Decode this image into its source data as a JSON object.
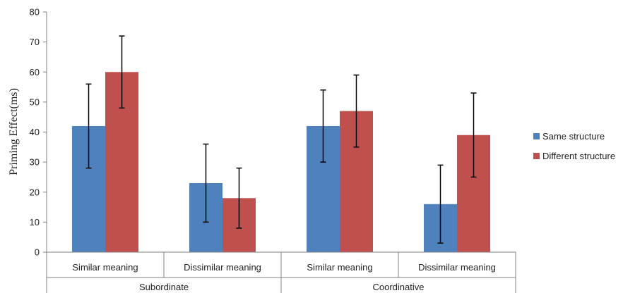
{
  "chart_data": {
    "type": "bar",
    "ylabel": "Priming Effect(ms)",
    "ylim": [
      0,
      80
    ],
    "yticks": [
      0,
      10,
      20,
      30,
      40,
      50,
      60,
      70,
      80
    ],
    "grid": false,
    "legend_position": "right",
    "groups": [
      {
        "label": "Subordinate",
        "categories": [
          "Similar meaning",
          "Dissimilar meaning"
        ]
      },
      {
        "label": "Coordinative",
        "categories": [
          "Similar meaning",
          "Dissimilar meaning"
        ]
      }
    ],
    "series": [
      {
        "name": "Same structure",
        "color": "#4f81bd",
        "values": [
          42,
          23,
          42,
          16
        ],
        "error": [
          14,
          13,
          12,
          13
        ]
      },
      {
        "name": "Different structure",
        "color": "#c0504d",
        "values": [
          60,
          18,
          47,
          39
        ],
        "error": [
          12,
          10,
          12,
          14
        ]
      }
    ]
  }
}
